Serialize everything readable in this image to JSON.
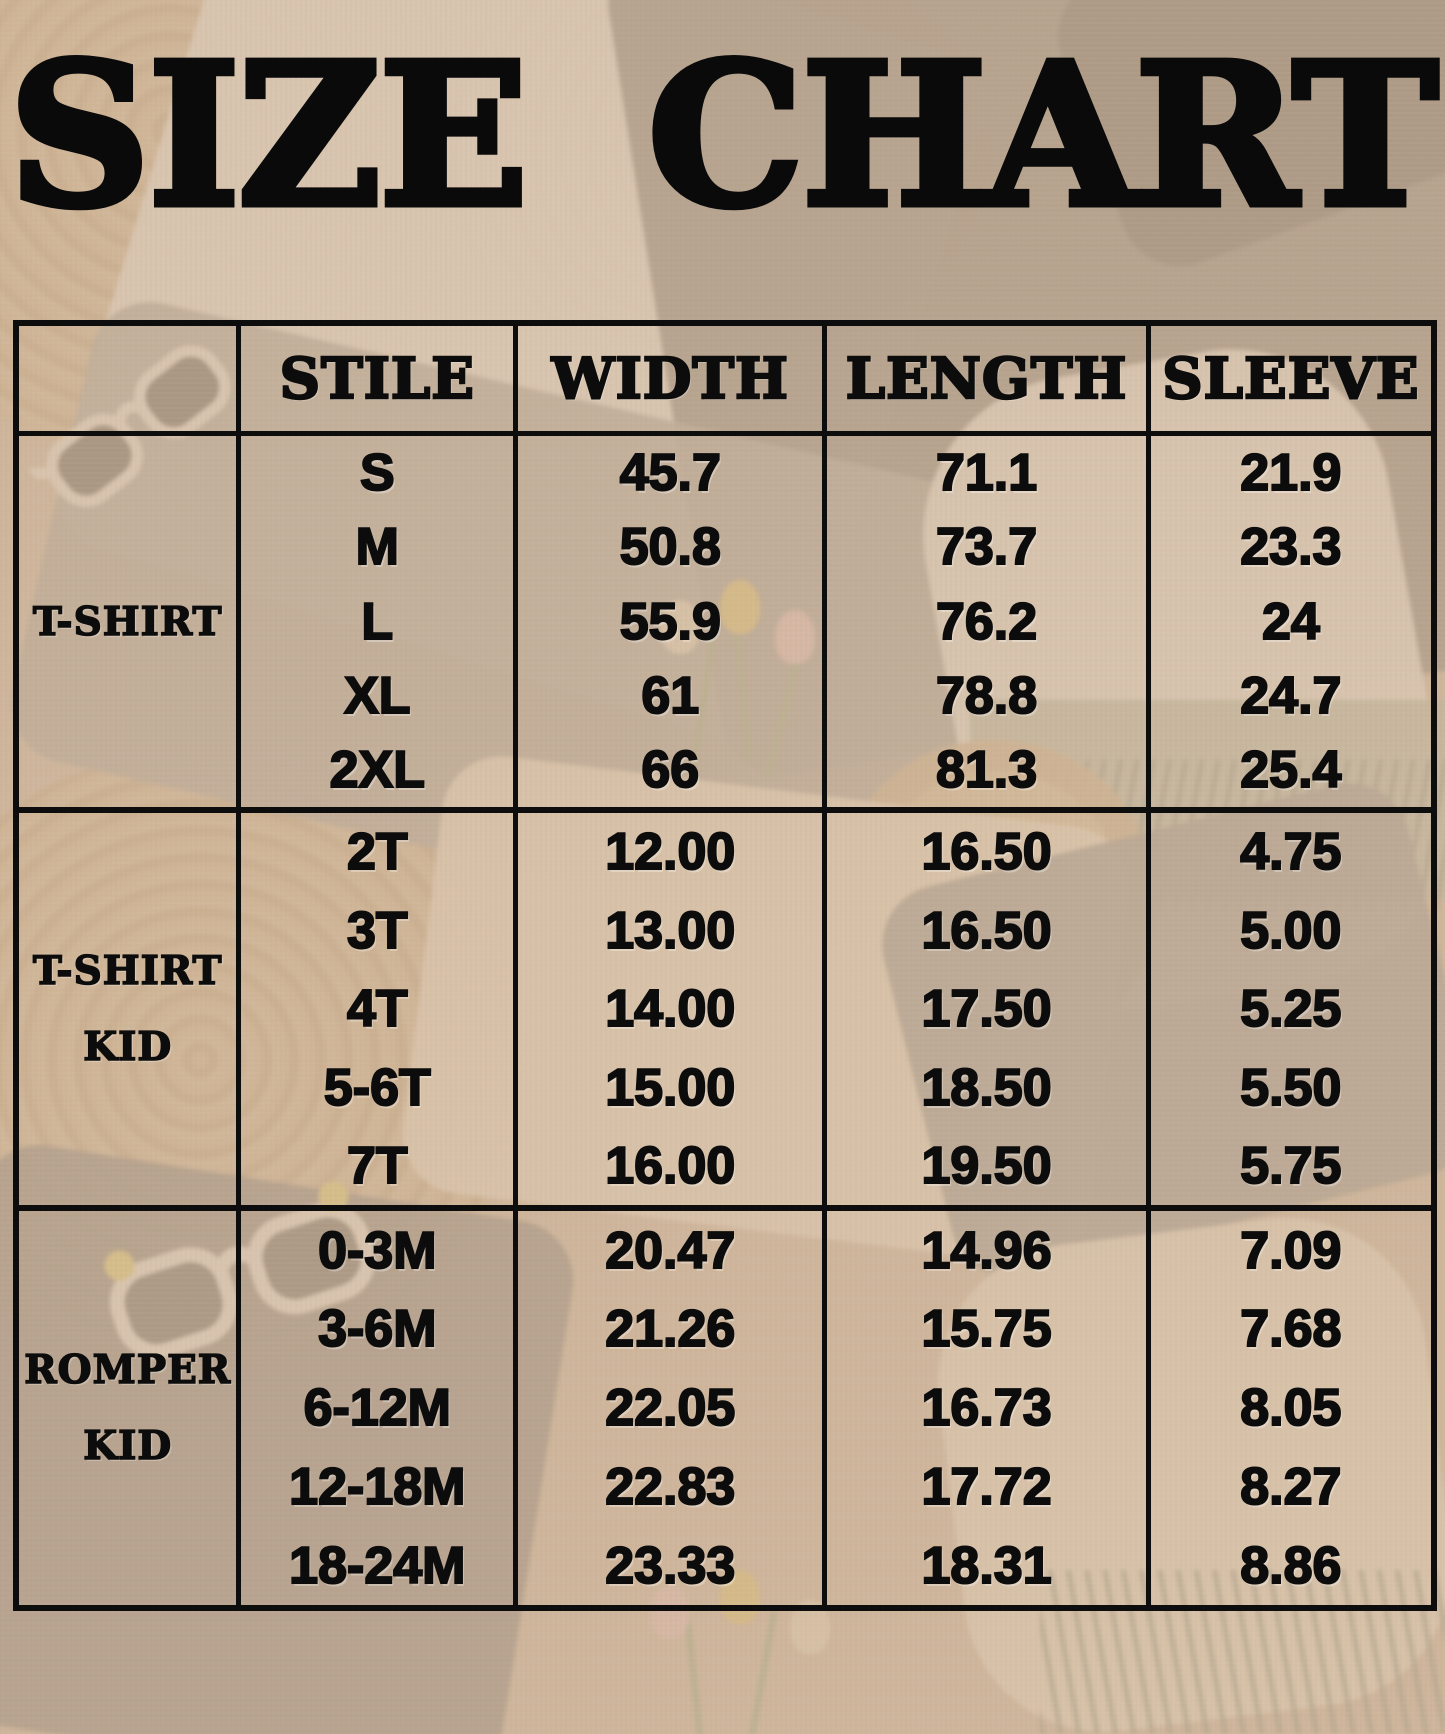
{
  "title": "SIZE CHART",
  "colors": {
    "table_line": "#0d0d0d",
    "text": "#0c0c0c",
    "background_wash": "#d0b79c",
    "scarf_green": "#a2b09f"
  },
  "chart_data": {
    "type": "table",
    "title": "SIZE CHART",
    "columns": [
      "",
      "STILE",
      "WIDTH",
      "LENGTH",
      "SLEEVE"
    ],
    "sections": [
      {
        "label": "T-SHIRT",
        "label_lines": [
          "T-SHIRT"
        ],
        "rows": [
          {
            "style": "S",
            "width": "45.7",
            "length": "71.1",
            "sleeve": "21.9"
          },
          {
            "style": "M",
            "width": "50.8",
            "length": "73.7",
            "sleeve": "23.3"
          },
          {
            "style": "L",
            "width": "55.9",
            "length": "76.2",
            "sleeve": "24"
          },
          {
            "style": "XL",
            "width": "61",
            "length": "78.8",
            "sleeve": "24.7"
          },
          {
            "style": "2XL",
            "width": "66",
            "length": "81.3",
            "sleeve": "25.4"
          }
        ]
      },
      {
        "label": "T-SHIRT KID",
        "label_lines": [
          "T-SHIRT",
          "KID"
        ],
        "rows": [
          {
            "style": "2T",
            "width": "12.00",
            "length": "16.50",
            "sleeve": "4.75"
          },
          {
            "style": "3T",
            "width": "13.00",
            "length": "16.50",
            "sleeve": "5.00"
          },
          {
            "style": "4T",
            "width": "14.00",
            "length": "17.50",
            "sleeve": "5.25"
          },
          {
            "style": "5-6T",
            "width": "15.00",
            "length": "18.50",
            "sleeve": "5.50"
          },
          {
            "style": "7T",
            "width": "16.00",
            "length": "19.50",
            "sleeve": "5.75"
          }
        ]
      },
      {
        "label": "ROMPER KID",
        "label_lines": [
          "ROMPER",
          "KID"
        ],
        "rows": [
          {
            "style": "0-3M",
            "width": "20.47",
            "length": "14.96",
            "sleeve": "7.09"
          },
          {
            "style": "3-6M",
            "width": "21.26",
            "length": "15.75",
            "sleeve": "7.68"
          },
          {
            "style": "6-12M",
            "width": "22.05",
            "length": "16.73",
            "sleeve": "8.05"
          },
          {
            "style": "12-18M",
            "width": "22.83",
            "length": "17.72",
            "sleeve": "8.27"
          },
          {
            "style": "18-24M",
            "width": "23.33",
            "length": "18.31",
            "sleeve": "8.86"
          }
        ]
      }
    ]
  }
}
